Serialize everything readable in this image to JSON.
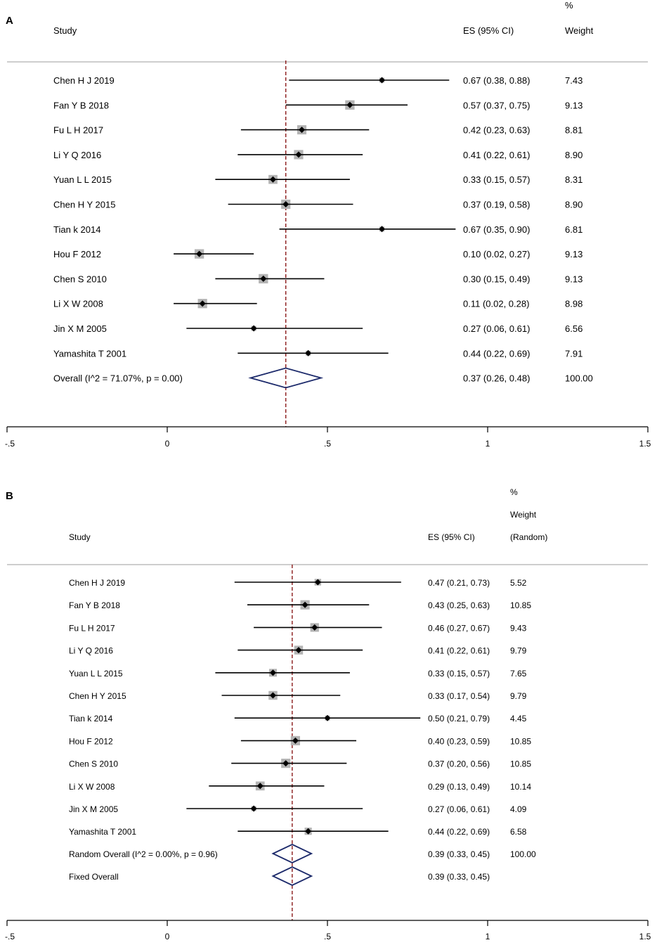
{
  "chart_data": [
    {
      "type": "forest",
      "panel_label": "A",
      "headers": {
        "study": "Study",
        "es": "ES (95% CI)",
        "weight_lines": [
          "%",
          "Weight"
        ]
      },
      "null_line": 0.37,
      "axis": {
        "min": -0.5,
        "max": 1.5,
        "ticks": [
          -0.5,
          0,
          0.5,
          1,
          1.5
        ],
        "tick_labels": [
          "-.5",
          "0",
          ".5",
          "1",
          "1.5"
        ]
      },
      "rows": [
        {
          "study": "Chen H J 2019",
          "es": 0.67,
          "lo": 0.38,
          "hi": 0.88,
          "es_text": "0.67 (0.38, 0.88)",
          "weight": "7.43",
          "box": false
        },
        {
          "study": "Fan Y B 2018",
          "es": 0.57,
          "lo": 0.37,
          "hi": 0.75,
          "es_text": "0.57 (0.37, 0.75)",
          "weight": "9.13",
          "box": true
        },
        {
          "study": "Fu L H 2017",
          "es": 0.42,
          "lo": 0.23,
          "hi": 0.63,
          "es_text": "0.42 (0.23, 0.63)",
          "weight": "8.81",
          "box": true
        },
        {
          "study": "Li Y Q 2016",
          "es": 0.41,
          "lo": 0.22,
          "hi": 0.61,
          "es_text": "0.41 (0.22, 0.61)",
          "weight": "8.90",
          "box": true
        },
        {
          "study": "Yuan L L 2015",
          "es": 0.33,
          "lo": 0.15,
          "hi": 0.57,
          "es_text": "0.33 (0.15, 0.57)",
          "weight": "8.31",
          "box": true
        },
        {
          "study": "Chen H Y 2015",
          "es": 0.37,
          "lo": 0.19,
          "hi": 0.58,
          "es_text": "0.37 (0.19, 0.58)",
          "weight": "8.90",
          "box": true
        },
        {
          "study": "Tian k 2014",
          "es": 0.67,
          "lo": 0.35,
          "hi": 0.9,
          "es_text": "0.67 (0.35, 0.90)",
          "weight": "6.81",
          "box": false
        },
        {
          "study": "Hou F 2012",
          "es": 0.1,
          "lo": 0.02,
          "hi": 0.27,
          "es_text": "0.10 (0.02, 0.27)",
          "weight": "9.13",
          "box": true
        },
        {
          "study": "Chen S 2010",
          "es": 0.3,
          "lo": 0.15,
          "hi": 0.49,
          "es_text": "0.30 (0.15, 0.49)",
          "weight": "9.13",
          "box": true
        },
        {
          "study": "Li X W 2008",
          "es": 0.11,
          "lo": 0.02,
          "hi": 0.28,
          "es_text": "0.11 (0.02, 0.28)",
          "weight": "8.98",
          "box": true
        },
        {
          "study": "Jin X M 2005",
          "es": 0.27,
          "lo": 0.06,
          "hi": 0.61,
          "es_text": "0.27 (0.06, 0.61)",
          "weight": "6.56",
          "box": false
        },
        {
          "study": "Yamashita T 2001",
          "es": 0.44,
          "lo": 0.22,
          "hi": 0.69,
          "es_text": "0.44 (0.22, 0.69)",
          "weight": "7.91",
          "box": false
        }
      ],
      "overall": [
        {
          "label": "Overall  (I^2 = 71.07%, p = 0.00)",
          "es": 0.37,
          "lo": 0.26,
          "hi": 0.48,
          "es_text": "0.37 (0.26, 0.48)",
          "weight": "100.00"
        }
      ]
    },
    {
      "type": "forest",
      "panel_label": "B",
      "headers": {
        "study": "Study",
        "es": "ES (95% CI)",
        "weight_lines": [
          "%",
          "Weight",
          "(Random)"
        ]
      },
      "null_line": 0.39,
      "axis": {
        "min": -0.5,
        "max": 1.5,
        "ticks": [
          -0.5,
          0,
          0.5,
          1,
          1.5
        ],
        "tick_labels": [
          "-.5",
          "0",
          ".5",
          "1",
          "1.5"
        ]
      },
      "rows": [
        {
          "study": "Chen H J 2019",
          "es": 0.47,
          "lo": 0.21,
          "hi": 0.73,
          "es_text": "0.47 (0.21, 0.73)",
          "weight": "5.52",
          "box": true
        },
        {
          "study": "Fan Y B 2018",
          "es": 0.43,
          "lo": 0.25,
          "hi": 0.63,
          "es_text": "0.43 (0.25, 0.63)",
          "weight": "10.85",
          "box": true
        },
        {
          "study": "Fu L H 2017",
          "es": 0.46,
          "lo": 0.27,
          "hi": 0.67,
          "es_text": "0.46 (0.27, 0.67)",
          "weight": "9.43",
          "box": true
        },
        {
          "study": "Li Y Q 2016",
          "es": 0.41,
          "lo": 0.22,
          "hi": 0.61,
          "es_text": "0.41 (0.22, 0.61)",
          "weight": "9.79",
          "box": true
        },
        {
          "study": "Yuan L L 2015",
          "es": 0.33,
          "lo": 0.15,
          "hi": 0.57,
          "es_text": "0.33 (0.15, 0.57)",
          "weight": "7.65",
          "box": true
        },
        {
          "study": "Chen H Y 2015",
          "es": 0.33,
          "lo": 0.17,
          "hi": 0.54,
          "es_text": "0.33 (0.17, 0.54)",
          "weight": "9.79",
          "box": true
        },
        {
          "study": "Tian k 2014",
          "es": 0.5,
          "lo": 0.21,
          "hi": 0.79,
          "es_text": "0.50 (0.21, 0.79)",
          "weight": "4.45",
          "box": false
        },
        {
          "study": "Hou F 2012",
          "es": 0.4,
          "lo": 0.23,
          "hi": 0.59,
          "es_text": "0.40 (0.23, 0.59)",
          "weight": "10.85",
          "box": true
        },
        {
          "study": "Chen S 2010",
          "es": 0.37,
          "lo": 0.2,
          "hi": 0.56,
          "es_text": "0.37 (0.20, 0.56)",
          "weight": "10.85",
          "box": true
        },
        {
          "study": "Li X W 2008",
          "es": 0.29,
          "lo": 0.13,
          "hi": 0.49,
          "es_text": "0.29 (0.13, 0.49)",
          "weight": "10.14",
          "box": true
        },
        {
          "study": "Jin X M 2005",
          "es": 0.27,
          "lo": 0.06,
          "hi": 0.61,
          "es_text": "0.27 (0.06, 0.61)",
          "weight": "4.09",
          "box": false
        },
        {
          "study": "Yamashita T 2001",
          "es": 0.44,
          "lo": 0.22,
          "hi": 0.69,
          "es_text": "0.44 (0.22, 0.69)",
          "weight": "6.58",
          "box": true
        }
      ],
      "overall": [
        {
          "label": "Random Overall  (I^2 = 0.00%, p = 0.96)",
          "es": 0.39,
          "lo": 0.33,
          "hi": 0.45,
          "es_text": "0.39 (0.33, 0.45)",
          "weight": "100.00"
        },
        {
          "label": "Fixed Overall",
          "es": 0.39,
          "lo": 0.33,
          "hi": 0.45,
          "es_text": "0.39 (0.33, 0.45)",
          "weight": ""
        }
      ]
    }
  ],
  "colors": {
    "ref_line": "#8b1a1a",
    "diamond": "#1c2a6b",
    "box": "#b4b4b4",
    "separator": "#b0b0b0",
    "text": "#000000"
  }
}
